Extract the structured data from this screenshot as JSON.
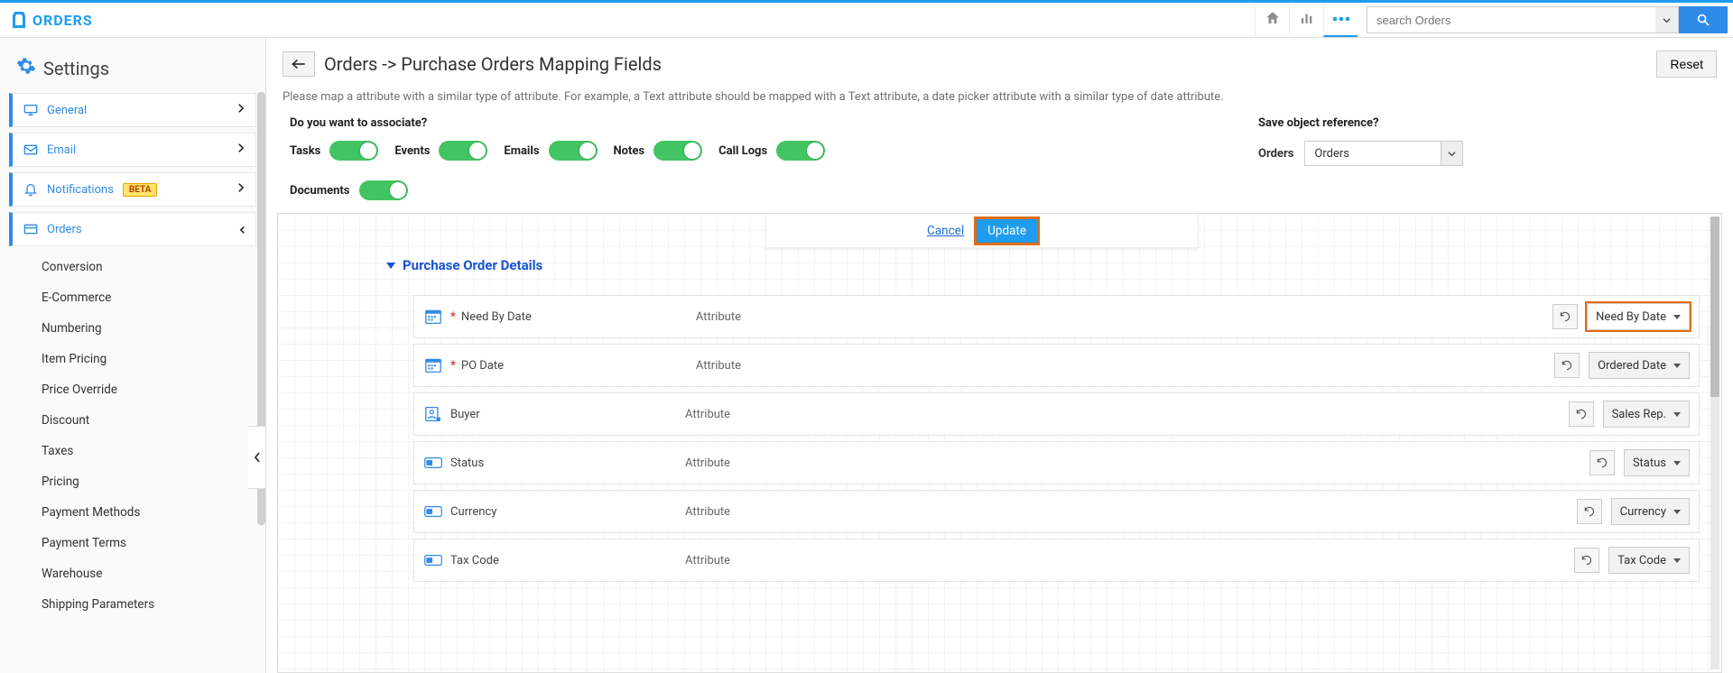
{
  "brand": "ORDERS",
  "topbar": {
    "search_placeholder": "search Orders"
  },
  "sidebar": {
    "title": "Settings",
    "items": [
      {
        "key": "general",
        "label": "General",
        "icon": "monitor"
      },
      {
        "key": "email",
        "label": "Email",
        "icon": "mail"
      },
      {
        "key": "notifications",
        "label": "Notifications",
        "icon": "bell",
        "badge": "BETA"
      },
      {
        "key": "orders",
        "label": "Orders",
        "icon": "card",
        "open": true
      }
    ],
    "sub_items": [
      "Conversion",
      "E-Commerce",
      "Numbering",
      "Item Pricing",
      "Price Override",
      "Discount",
      "Taxes",
      "Pricing",
      "Payment Methods",
      "Payment Terms",
      "Warehouse",
      "Shipping Parameters"
    ]
  },
  "page": {
    "title": "Orders -> Purchase Orders Mapping Fields",
    "reset_label": "Reset",
    "help": "Please map a attribute with a similar type of attribute. For example, a Text attribute should be mapped with a Text attribute, a date picker attribute with a similar type of date attribute."
  },
  "associate": {
    "heading": "Do you want to associate?",
    "items": [
      {
        "key": "tasks",
        "label": "Tasks",
        "on": true
      },
      {
        "key": "events",
        "label": "Events",
        "on": true
      },
      {
        "key": "emails",
        "label": "Emails",
        "on": true
      },
      {
        "key": "notes",
        "label": "Notes",
        "on": true
      },
      {
        "key": "calllogs",
        "label": "Call Logs",
        "on": true
      },
      {
        "key": "documents",
        "label": "Documents",
        "on": true
      }
    ]
  },
  "objref": {
    "heading": "Save object reference?",
    "label": "Orders",
    "value": "Orders"
  },
  "actions": {
    "cancel": "Cancel",
    "update": "Update"
  },
  "section": {
    "title": "Purchase Order Details",
    "rows": [
      {
        "icon": "date",
        "required": true,
        "name": "Need By Date",
        "mid": "Attribute",
        "mapped": "Need By Date",
        "highlight": true
      },
      {
        "icon": "date",
        "required": true,
        "name": "PO Date",
        "mid": "Attribute",
        "mapped": "Ordered Date"
      },
      {
        "icon": "person",
        "required": false,
        "name": "Buyer",
        "mid": "Attribute",
        "mapped": "Sales Rep."
      },
      {
        "icon": "tag",
        "required": false,
        "name": "Status",
        "mid": "Attribute",
        "mapped": "Status"
      },
      {
        "icon": "tag",
        "required": false,
        "name": "Currency",
        "mid": "Attribute",
        "mapped": "Currency"
      },
      {
        "icon": "tag",
        "required": false,
        "name": "Tax Code",
        "mid": "Attribute",
        "mapped": "Tax Code"
      }
    ]
  }
}
